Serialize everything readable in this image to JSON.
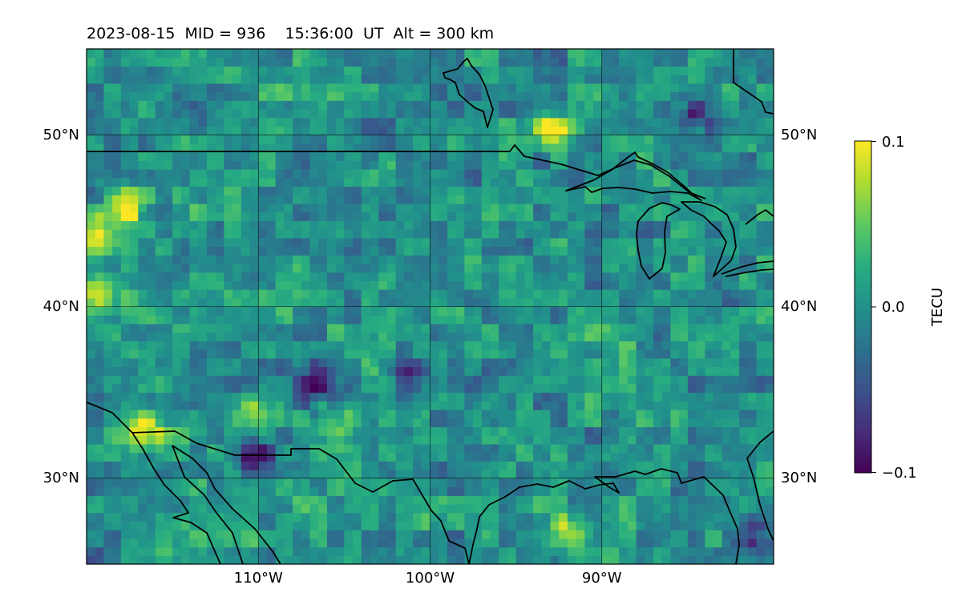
{
  "title": "2023-08-15  MID = 936    15:36:00  UT  Alt = 300 km",
  "colorbar": {
    "label": "TECU",
    "ticks": [
      "0.1",
      "0.0",
      "−0.1"
    ],
    "colormap": "viridis",
    "range": [
      -0.1,
      0.1
    ]
  },
  "chart_data": {
    "type": "heatmap",
    "title": "2023-08-15  MID = 936    15:36:00  UT  Alt = 300 km",
    "xlabel": "",
    "ylabel": "",
    "xlim": [
      -120,
      -80
    ],
    "ylim": [
      25,
      55
    ],
    "x_ticks": [
      -110,
      -100,
      -90
    ],
    "x_tick_labels": [
      "110°W",
      "100°W",
      "90°W"
    ],
    "y_ticks": [
      30,
      40,
      50
    ],
    "y_tick_labels": [
      "30°N",
      "40°N",
      "50°N"
    ],
    "grid": true,
    "value_label": "TECU",
    "value_range": [
      -0.1,
      0.1
    ],
    "colormap": "viridis",
    "mean_value": 0.0,
    "features": [
      {
        "desc": "positive patch",
        "lon": -93.0,
        "lat": 50.0,
        "value": 0.1
      },
      {
        "desc": "positive patch",
        "lon": -119.5,
        "lat": 44.0,
        "value": 0.1
      },
      {
        "desc": "positive patch",
        "lon": -118.0,
        "lat": 45.5,
        "value": 0.09
      },
      {
        "desc": "positive patch",
        "lon": -117.0,
        "lat": 32.5,
        "value": 0.1
      },
      {
        "desc": "positive patch",
        "lon": -110.5,
        "lat": 33.5,
        "value": 0.08
      },
      {
        "desc": "positive patch",
        "lon": -105.5,
        "lat": 33.0,
        "value": 0.07
      },
      {
        "desc": "positive patch",
        "lon": -119.5,
        "lat": 40.5,
        "value": 0.09
      },
      {
        "desc": "positive patch",
        "lon": -92.0,
        "lat": 26.5,
        "value": 0.08
      },
      {
        "desc": "negative patch",
        "lon": -107.0,
        "lat": 35.0,
        "value": -0.09
      },
      {
        "desc": "negative patch",
        "lon": -110.5,
        "lat": 31.0,
        "value": -0.08
      },
      {
        "desc": "negative patch",
        "lon": -85.0,
        "lat": 51.0,
        "value": -0.07
      },
      {
        "desc": "negative patch",
        "lon": -101.5,
        "lat": 35.5,
        "value": -0.06
      },
      {
        "desc": "negative patch",
        "lon": -81.0,
        "lat": 26.0,
        "value": -0.08
      }
    ]
  }
}
